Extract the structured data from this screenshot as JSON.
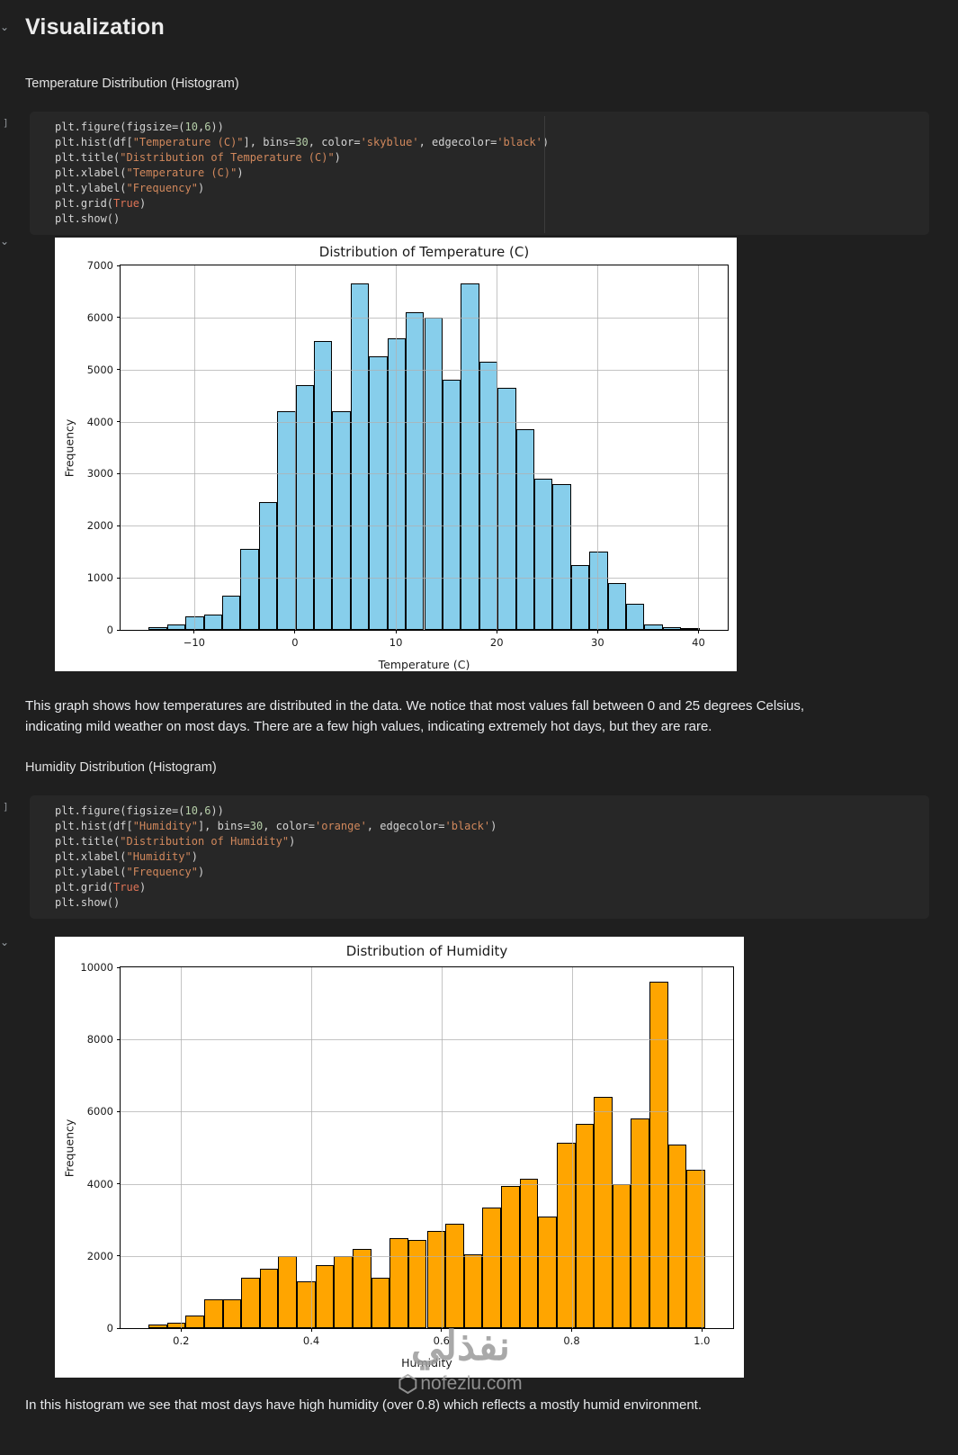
{
  "page": {
    "title": "Visualization",
    "sections": {
      "temp_label": "Temperature Distribution (Histogram)",
      "humidity_label": "Humidity Distribution (Histogram)"
    },
    "paragraphs": {
      "temp_line1": "This graph shows how temperatures are distributed in the data. We notice that most values fall between 0 and 25 degrees Celsius,",
      "temp_line2": "indicating mild weather on most days. There are a few high values, indicating extremely hot days, but they are rare.",
      "humidity": "In this histogram we see that most days have high humidity (over 0.8) which reflects a mostly humid environment."
    },
    "gutter": {
      "bracket": "]",
      "chevron": "⌄"
    },
    "watermark": {
      "arabic": "نفذلي",
      "site": "nofezlu.com"
    }
  },
  "code_cells": [
    {
      "lines": [
        [
          [
            "p",
            "plt.figure(figsize=("
          ],
          [
            "n",
            "10"
          ],
          [
            "p",
            ","
          ],
          [
            "n",
            "6"
          ],
          [
            "p",
            "))"
          ]
        ],
        [
          [
            "p",
            "plt.hist(df["
          ],
          [
            "s",
            "\"Temperature (C)\""
          ],
          [
            "p",
            "], bins="
          ],
          [
            "n",
            "30"
          ],
          [
            "p",
            ", color="
          ],
          [
            "s",
            "'skyblue'"
          ],
          [
            "p",
            ", edgecolor="
          ],
          [
            "s",
            "'black'"
          ],
          [
            "p",
            ")"
          ]
        ],
        [
          [
            "p",
            "plt.title("
          ],
          [
            "s",
            "\"Distribution of Temperature (C)\""
          ],
          [
            "p",
            ")"
          ]
        ],
        [
          [
            "p",
            "plt.xlabel("
          ],
          [
            "s",
            "\"Temperature (C)\""
          ],
          [
            "p",
            ")"
          ]
        ],
        [
          [
            "p",
            "plt.ylabel("
          ],
          [
            "s",
            "\"Frequency\""
          ],
          [
            "p",
            ")"
          ]
        ],
        [
          [
            "p",
            "plt.grid("
          ],
          [
            "k",
            "True"
          ],
          [
            "p",
            ")"
          ]
        ],
        [
          [
            "p",
            "plt.show()"
          ]
        ]
      ]
    },
    {
      "lines": [
        [
          [
            "p",
            "plt.figure(figsize=("
          ],
          [
            "n",
            "10"
          ],
          [
            "p",
            ","
          ],
          [
            "n",
            "6"
          ],
          [
            "p",
            "))"
          ]
        ],
        [
          [
            "p",
            "plt.hist(df["
          ],
          [
            "s",
            "\"Humidity\""
          ],
          [
            "p",
            "], bins="
          ],
          [
            "n",
            "30"
          ],
          [
            "p",
            ", color="
          ],
          [
            "s",
            "'orange'"
          ],
          [
            "p",
            ", edgecolor="
          ],
          [
            "s",
            "'black'"
          ],
          [
            "p",
            ")"
          ]
        ],
        [
          [
            "p",
            "plt.title("
          ],
          [
            "s",
            "\"Distribution of Humidity\""
          ],
          [
            "p",
            ")"
          ]
        ],
        [
          [
            "p",
            "plt.xlabel("
          ],
          [
            "s",
            "\"Humidity\""
          ],
          [
            "p",
            ")"
          ]
        ],
        [
          [
            "p",
            "plt.ylabel("
          ],
          [
            "s",
            "\"Frequency\""
          ],
          [
            "p",
            ")"
          ]
        ],
        [
          [
            "p",
            "plt.grid("
          ],
          [
            "k",
            "True"
          ],
          [
            "p",
            ")"
          ]
        ],
        [
          [
            "p",
            "plt.show()"
          ]
        ]
      ]
    }
  ],
  "chart_data": [
    {
      "type": "bar",
      "subtype": "histogram",
      "title": "Distribution of Temperature (C)",
      "xlabel": "Temperature (C)",
      "ylabel": "Frequency",
      "bar_color": "#87CEEB",
      "edge_color": "#000000",
      "bins": 30,
      "bin_start": -14.5,
      "bin_width": 1.82,
      "values": [
        60,
        110,
        260,
        300,
        650,
        1550,
        2450,
        4200,
        4700,
        5550,
        4200,
        6650,
        5250,
        5600,
        6100,
        6000,
        4800,
        6650,
        5150,
        4650,
        3850,
        2900,
        2800,
        1250,
        1500,
        900,
        500,
        100,
        60,
        30
      ],
      "xlim": [
        -17.3,
        42.9
      ],
      "ylim": [
        0,
        7000
      ],
      "xticks": [
        -10,
        0,
        10,
        20,
        30,
        40
      ],
      "xtick_labels": [
        "−10",
        "0",
        "10",
        "20",
        "30",
        "40"
      ],
      "yticks": [
        0,
        1000,
        2000,
        3000,
        4000,
        5000,
        6000,
        7000
      ],
      "grid": true,
      "legend": "none"
    },
    {
      "type": "bar",
      "subtype": "histogram",
      "title": "Distribution of Humidity",
      "xlabel": "Humidity",
      "ylabel": "Frequency",
      "bar_color": "#FFA500",
      "edge_color": "#000000",
      "bins": 30,
      "bin_start": 0.15,
      "bin_width": 0.0285,
      "values": [
        100,
        150,
        350,
        800,
        800,
        1400,
        1650,
        2000,
        1300,
        1750,
        2000,
        2200,
        1400,
        2500,
        2450,
        2700,
        2900,
        2050,
        3350,
        3950,
        4150,
        3100,
        5150,
        5650,
        6400,
        4000,
        5800,
        9600,
        5100,
        4400
      ],
      "xlim": [
        0.107,
        1.048
      ],
      "ylim": [
        0,
        10000
      ],
      "xticks": [
        0.2,
        0.4,
        0.6,
        0.8,
        1.0
      ],
      "xtick_labels": [
        "0.2",
        "0.4",
        "0.6",
        "0.8",
        "1.0"
      ],
      "yticks": [
        0,
        2000,
        4000,
        6000,
        8000,
        10000
      ],
      "grid": true,
      "legend": "none"
    }
  ]
}
